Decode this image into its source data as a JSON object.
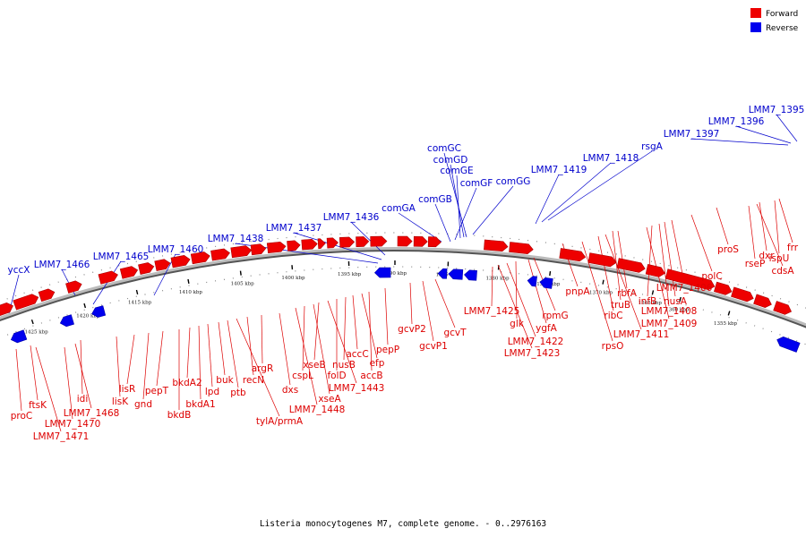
{
  "legend": [
    {
      "label": "Forward",
      "color": "#ee0000"
    },
    {
      "label": "Reverse",
      "color": "#0000ee"
    }
  ],
  "caption": "Listeria monocytogenes M7, complete genome. - 0..2976163",
  "ticks": [
    "1355 kbp",
    "1360 kbp",
    "1365 kbp",
    "1370 kbp",
    "1375 kbp",
    "1380 kbp",
    "1385 kbp",
    "1390 kbp",
    "1395 kbp",
    "1400 kbp",
    "1405 kbp",
    "1410 kbp",
    "1415 kbp",
    "1420 kbp",
    "1425 kbp"
  ],
  "reverse_labels": [
    "LMM7_1395",
    "LMM7_1396",
    "LMM7_1397",
    "rsgA",
    "LMM7_1418",
    "LMM7_1419",
    "comGC",
    "comGD",
    "comGE",
    "comGF",
    "comGG",
    "comGB",
    "comGA",
    "LMM7_1436",
    "LMM7_1437",
    "LMM7_1438",
    "LMM7_1460",
    "LMM7_1465",
    "LMM7_1466",
    "yccX"
  ],
  "forward_labels": [
    "frr",
    "ispU",
    "dxr",
    "cdsA",
    "rseP",
    "proS",
    "polC",
    "LMM7_1406",
    "nusA",
    "LMM7_1408",
    "infB",
    "LMM7_1409",
    "rbfA",
    "truB",
    "LMM7_1411",
    "ribC",
    "rpsO",
    "pnpA",
    "rpmG",
    "ygfA",
    "glk",
    "LMM7_1422",
    "LMM7_1423",
    "LMM7_1425",
    "gcvT",
    "gcvP1",
    "gcvP2",
    "pepP",
    "accB",
    "efp",
    "accC",
    "nusB",
    "folD",
    "LMM7_1443",
    "xseB",
    "xseA",
    "cspL",
    "LMM7_1448",
    "dxs",
    "argR",
    "recN",
    "tylA/prmA",
    "ptb",
    "buk",
    "lpd",
    "bkdA1",
    "bkdA2",
    "bkdB",
    "pepT",
    "gnd",
    "lisR",
    "lisK",
    "idi",
    "LMM7_1468",
    "ftsK",
    "LMM7_1470",
    "LMM7_1471",
    "proC"
  ]
}
